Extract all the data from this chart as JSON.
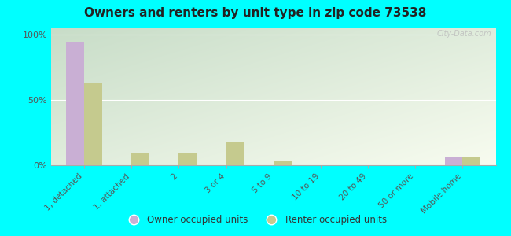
{
  "title": "Owners and renters by unit type in zip code 73538",
  "categories": [
    "1, detached",
    "1, attached",
    "2",
    "3 or 4",
    "5 to 9",
    "10 to 19",
    "20 to 49",
    "50 or more",
    "Mobile home"
  ],
  "owner_values": [
    95,
    0,
    0,
    0,
    0,
    0,
    0,
    0,
    6
  ],
  "renter_values": [
    63,
    9,
    9,
    18,
    3,
    0,
    0,
    0,
    6
  ],
  "owner_color": "#c9afd4",
  "renter_color": "#c5ca8e",
  "background_color": "#00ffff",
  "plot_bg_topleft": "#c8ddc8",
  "plot_bg_bottomright": "#f0f5e8",
  "yticks": [
    0,
    50,
    100
  ],
  "ylim": [
    0,
    105
  ],
  "bar_width": 0.38,
  "watermark": "City-Data.com"
}
